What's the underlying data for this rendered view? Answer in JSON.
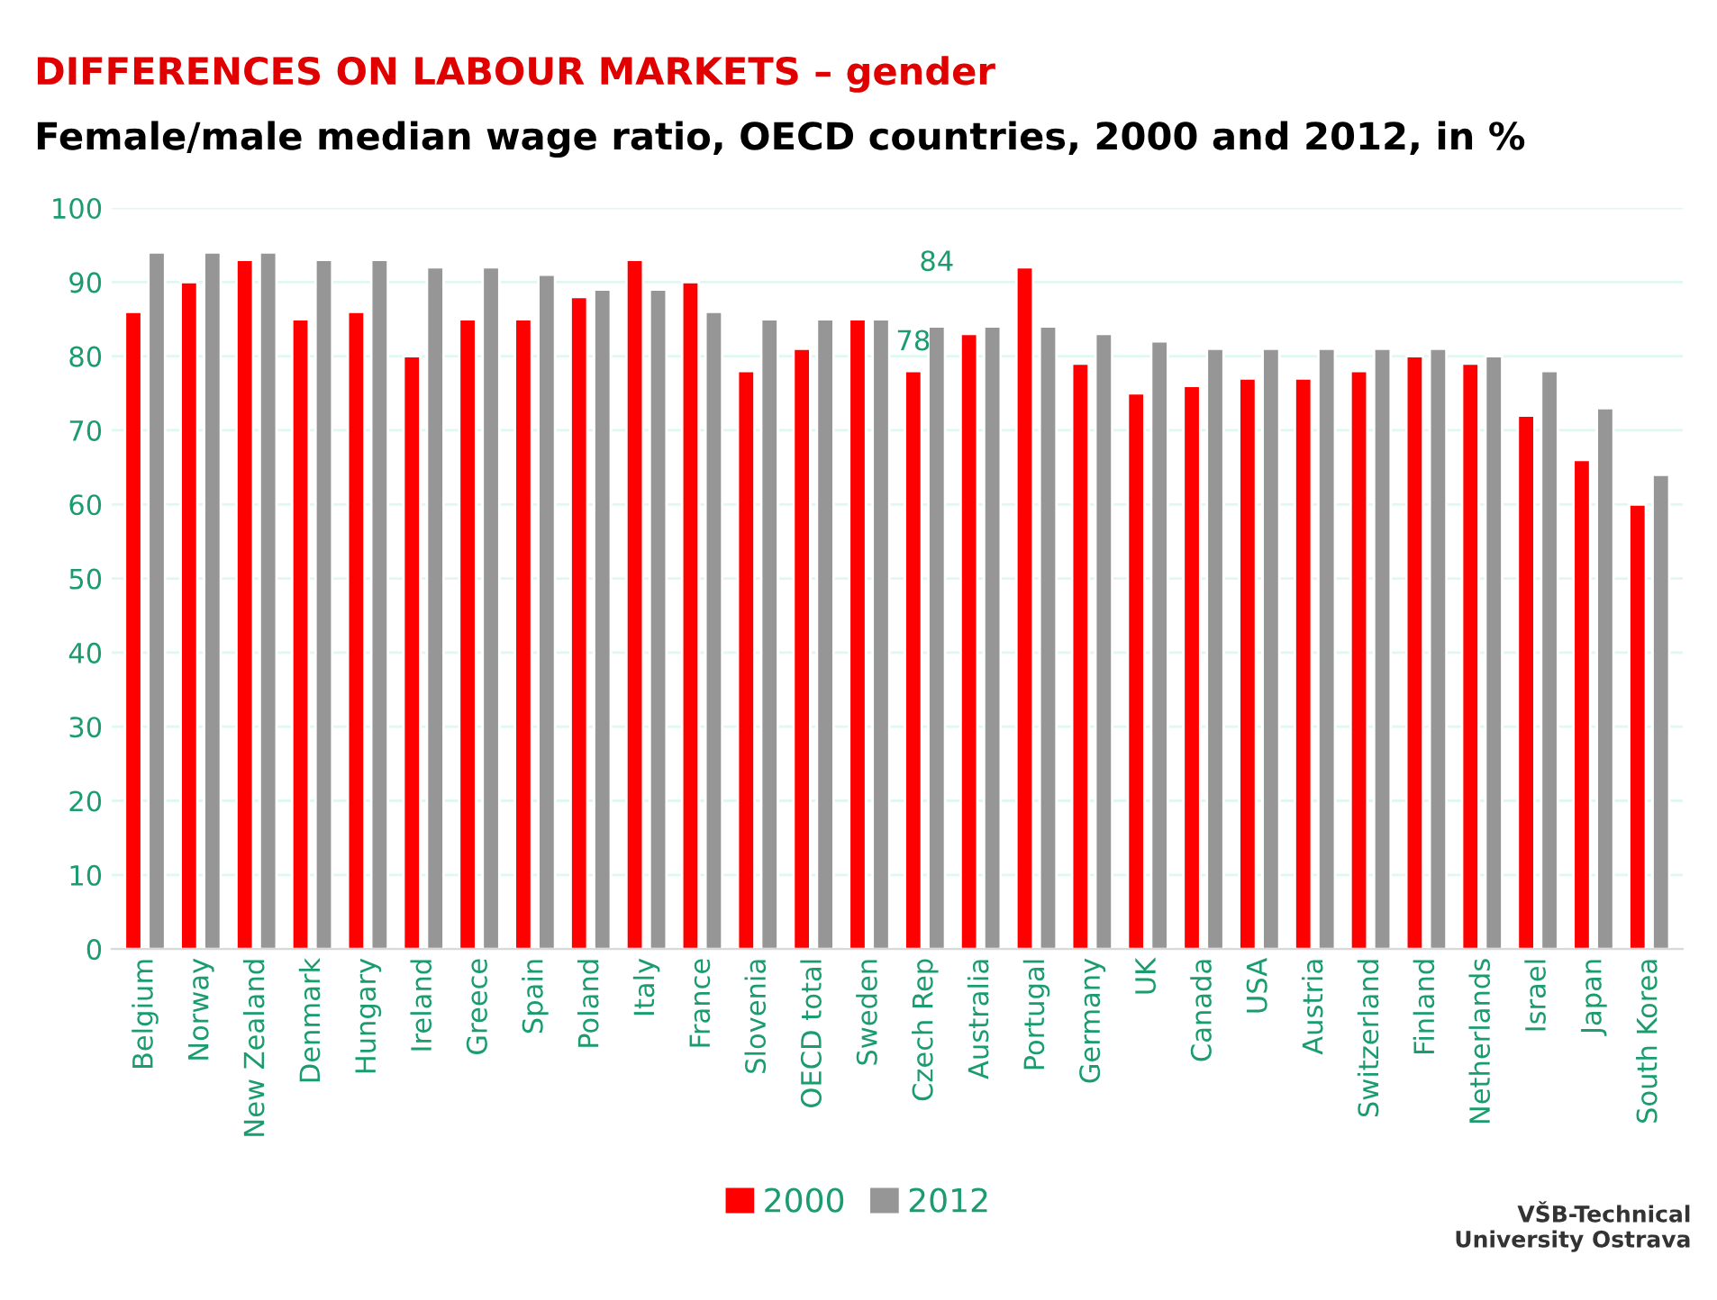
{
  "chart_data": {
    "type": "bar",
    "title": "DIFFERENCES ON LABOUR MARKETS – gender",
    "subtitle": "Female/male median wage ratio, OECD countries, 2000 and 2012, in %",
    "categories": [
      "Belgium",
      "Norway",
      "New Zealand",
      "Denmark",
      "Hungary",
      "Ireland",
      "Greece",
      "Spain",
      "Poland",
      "Italy",
      "France",
      "Slovenia",
      "OECD total",
      "Sweden",
      "Czech Rep",
      "Australia",
      "Portugal",
      "Germany",
      "UK",
      "Canada",
      "USA",
      "Austria",
      "Switzerland",
      "Finland",
      "Netherlands",
      "Israel",
      "Japan",
      "South Korea"
    ],
    "series": [
      {
        "name": "2000",
        "color": "#ff0000",
        "values": [
          86,
          90,
          93,
          85,
          86,
          80,
          85,
          85,
          88,
          93,
          90,
          78,
          81,
          85,
          78,
          83,
          92,
          79,
          75,
          76,
          77,
          77,
          78,
          80,
          79,
          72,
          66,
          60
        ],
        "value_labels": [
          null,
          null,
          null,
          null,
          null,
          null,
          null,
          null,
          null,
          null,
          null,
          null,
          null,
          null,
          "78",
          null,
          null,
          null,
          null,
          null,
          null,
          null,
          null,
          null,
          null,
          null,
          null,
          null
        ]
      },
      {
        "name": "2012",
        "color": "#969696",
        "values": [
          94,
          94,
          94,
          93,
          93,
          92,
          92,
          91,
          89,
          89,
          86,
          85,
          85,
          85,
          84,
          84,
          84,
          83,
          82,
          81,
          81,
          81,
          81,
          81,
          80,
          78,
          73,
          64
        ],
        "value_labels": [
          null,
          null,
          null,
          null,
          null,
          null,
          null,
          null,
          null,
          null,
          null,
          null,
          null,
          null,
          "84",
          null,
          null,
          null,
          null,
          null,
          null,
          null,
          null,
          null,
          null,
          null,
          null,
          null
        ]
      }
    ],
    "ylim": [
      0,
      100
    ],
    "yticks": [
      0,
      10,
      20,
      30,
      40,
      50,
      60,
      70,
      80,
      90,
      100
    ],
    "grid": "y",
    "legend": "bottom",
    "annotations": [
      "VŠB-Technical\nUniversity Ostrava"
    ]
  }
}
